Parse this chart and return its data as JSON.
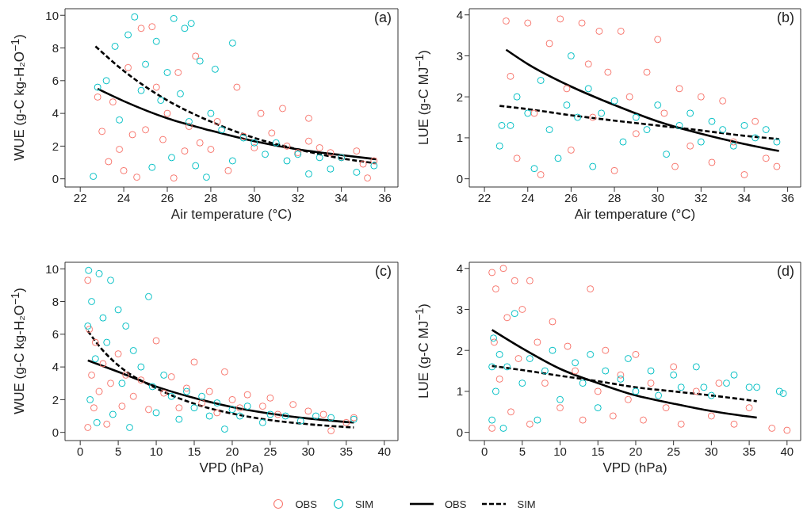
{
  "chart_data": [
    {
      "type": "scatter",
      "ylabel": "WUE (g-C kg-H₂O$^{−1}$)",
      "xlabel": "Air temperature (°C)",
      "annotations": [
        "(a)"
      ],
      "xlim": [
        21.3,
        36.6
      ],
      "ylim": [
        -0.5,
        10.4
      ],
      "xticks": [
        22,
        24,
        26,
        28,
        30,
        32,
        34,
        36
      ],
      "yticks": [
        0,
        2,
        4,
        6,
        8,
        10
      ],
      "legend": "bottom",
      "series": [
        {
          "name": "OBS",
          "marker": "circle",
          "color": "#f8766d",
          "x": [
            22.8,
            23,
            23.3,
            23.5,
            23.8,
            24,
            24.2,
            24.4,
            24.6,
            24.8,
            25,
            25.3,
            25.5,
            25.8,
            26,
            26.3,
            26.5,
            26.8,
            27,
            27.3,
            27.5,
            28,
            28.3,
            28.8,
            29.2,
            29.5,
            30,
            30.3,
            30.8,
            31.3,
            31.5,
            32,
            32.5,
            32.5,
            33,
            33.5,
            34,
            34.7,
            35,
            35.2,
            35.5
          ],
          "values": [
            5,
            2.9,
            1.05,
            4.7,
            1.8,
            0.5,
            6.8,
            2.7,
            0.1,
            9.2,
            3,
            9.3,
            5.6,
            2.4,
            4,
            0.05,
            6.5,
            1.7,
            3.2,
            7.5,
            2.2,
            1.8,
            3.5,
            0.5,
            5.6,
            2.6,
            1.9,
            4,
            2.8,
            4.3,
            2,
            1.6,
            3.7,
            2.3,
            1.9,
            1.6,
            1.3,
            1.7,
            0.9,
            0.05,
            1.1
          ]
        },
        {
          "name": "SIM",
          "marker": "circle",
          "color": "#00bfc4",
          "x": [
            22.6,
            22.8,
            23.2,
            23.6,
            23.8,
            24.2,
            24.5,
            24.8,
            25,
            25.3,
            25.5,
            25.7,
            26,
            26.2,
            26.3,
            26.6,
            26.8,
            27,
            27.1,
            27.3,
            27.5,
            27.8,
            28,
            28.2,
            28.5,
            29,
            29,
            29.5,
            30,
            30.5,
            31,
            31.5,
            32,
            32.5,
            33,
            33.5,
            34,
            34.7,
            35.5
          ],
          "values": [
            0.15,
            5.6,
            6,
            8.1,
            3.6,
            8.8,
            9.9,
            5.4,
            7,
            0.7,
            8.4,
            4.8,
            6.5,
            1.3,
            9.8,
            5.2,
            9.2,
            3.5,
            9.5,
            0.8,
            7.2,
            0.1,
            4,
            6.7,
            3,
            8.3,
            1.1,
            2.5,
            2.2,
            1.5,
            2.2,
            1.1,
            1.5,
            0.3,
            1.3,
            0.6,
            1.3,
            0.4,
            0.8
          ]
        },
        {
          "name": "OBS",
          "type": "line",
          "line_style": "solid",
          "color": "#000000",
          "x": [
            22.8,
            24,
            26,
            28,
            30,
            32,
            34,
            35.6
          ],
          "values": [
            5.5,
            4.75,
            3.7,
            2.95,
            2.3,
            1.8,
            1.45,
            1.2
          ]
        },
        {
          "name": "SIM",
          "type": "line",
          "line_style": "dashed",
          "color": "#000000",
          "x": [
            22.7,
            24,
            26,
            28,
            30,
            32,
            34,
            35.6
          ],
          "values": [
            8.1,
            6.6,
            4.8,
            3.5,
            2.5,
            1.8,
            1.25,
            0.95
          ]
        }
      ]
    },
    {
      "type": "scatter",
      "ylabel": "LUE (g-C MJ$^{−1}$)",
      "xlabel": "Air temperature (°C)",
      "annotations": [
        "(b)"
      ],
      "xlim": [
        21.3,
        36.6
      ],
      "ylim": [
        -0.2,
        4.15
      ],
      "xticks": [
        22,
        24,
        26,
        28,
        30,
        32,
        34,
        36
      ],
      "yticks": [
        0,
        1,
        2,
        3,
        4
      ],
      "series": [
        {
          "marker": "circle",
          "color": "#f8766d",
          "x": [
            23,
            23.2,
            23.5,
            24,
            24.3,
            24.6,
            25,
            25.5,
            25.8,
            26,
            26.5,
            26.8,
            27,
            27.3,
            27.7,
            28,
            28.3,
            28.7,
            29,
            29.5,
            30,
            30.3,
            30.8,
            31,
            31.5,
            32,
            32.5,
            33,
            33.5,
            34,
            34.5,
            35,
            35.5
          ],
          "values": [
            3.85,
            2.5,
            0.5,
            3.8,
            1.6,
            0.1,
            3.3,
            3.9,
            2.2,
            0.7,
            3.8,
            2.8,
            1.5,
            3.6,
            2.6,
            0.2,
            3.6,
            2,
            1.1,
            2.6,
            3.4,
            1.6,
            0.3,
            2.2,
            0.8,
            2,
            0.4,
            1.9,
            0.9,
            0.1,
            1.4,
            0.5,
            0.3
          ]
        },
        {
          "marker": "circle",
          "color": "#00bfc4",
          "x": [
            22.7,
            22.8,
            23.2,
            23.5,
            24,
            24.3,
            24.6,
            25,
            25.4,
            25.8,
            26,
            26.3,
            26.8,
            27,
            27.4,
            28,
            28.4,
            29,
            29.5,
            30,
            30.4,
            31,
            31.5,
            32,
            32.5,
            33,
            33.5,
            34,
            34.5,
            35,
            35.5
          ],
          "values": [
            0.8,
            1.3,
            1.3,
            2,
            1.6,
            0.25,
            2.4,
            1.2,
            0.5,
            1.8,
            3,
            1.5,
            2.2,
            0.3,
            1.6,
            1.9,
            0.9,
            1.5,
            1.2,
            1.8,
            0.6,
            1.3,
            1.6,
            0.9,
            1.4,
            1.2,
            0.8,
            1.3,
            1,
            1.2,
            0.9
          ]
        },
        {
          "type": "line",
          "line_style": "solid",
          "color": "#000000",
          "x": [
            23,
            24,
            26,
            28,
            30,
            32,
            34,
            35.6
          ],
          "values": [
            3.15,
            2.8,
            2.25,
            1.8,
            1.4,
            1.1,
            0.85,
            0.68
          ]
        },
        {
          "type": "line",
          "line_style": "dashed",
          "color": "#000000",
          "x": [
            22.7,
            24,
            26,
            28,
            30,
            32,
            34,
            35.6
          ],
          "values": [
            1.78,
            1.7,
            1.55,
            1.42,
            1.3,
            1.18,
            1.05,
            0.97
          ]
        }
      ]
    },
    {
      "type": "scatter",
      "ylabel": "WUE (g-C kg-H₂O$^{−1}$)",
      "xlabel": "VPD (hPa)",
      "annotations": [
        "(c)"
      ],
      "xlim": [
        -2,
        41.8
      ],
      "ylim": [
        -0.5,
        10.4
      ],
      "xticks": [
        0,
        5,
        10,
        15,
        20,
        25,
        30,
        35,
        40
      ],
      "yticks": [
        0,
        2,
        4,
        6,
        8,
        10
      ],
      "series": [
        {
          "marker": "circle",
          "color": "#f8766d",
          "x": [
            1,
            1,
            1.2,
            1.5,
            1.8,
            2,
            2.5,
            3,
            3.5,
            4,
            5,
            5.5,
            6,
            7,
            8,
            9,
            10,
            11,
            12,
            13,
            14,
            15,
            16,
            17,
            18,
            19,
            20,
            21,
            22,
            24,
            25,
            26,
            28,
            30,
            32,
            33,
            35,
            36
          ],
          "values": [
            9.3,
            0.3,
            6.3,
            3.5,
            1.5,
            5.5,
            2.5,
            4.2,
            0.5,
            3,
            4.8,
            1.6,
            3.5,
            2.2,
            3.2,
            1.4,
            5.6,
            2.4,
            3.4,
            1.5,
            2.7,
            4.3,
            1.8,
            2.5,
            1.2,
            3.7,
            2,
            1.5,
            2.3,
            1.6,
            2.1,
            1.1,
            1.7,
            1.3,
            1.1,
            0.1,
            0.6,
            0.9
          ]
        },
        {
          "marker": "circle",
          "color": "#00bfc4",
          "x": [
            1,
            1.1,
            1.3,
            1.5,
            2,
            2.2,
            2.5,
            3,
            3.5,
            4,
            4.3,
            5,
            5.5,
            6,
            6.5,
            7,
            8,
            9,
            9.5,
            10,
            11,
            12,
            13,
            14,
            15,
            16,
            17,
            18,
            19,
            20,
            21,
            22,
            24,
            25,
            27,
            29,
            31,
            33,
            36
          ],
          "values": [
            6.5,
            9.9,
            2,
            8,
            4.5,
            0.6,
            9.7,
            7,
            5.5,
            9.3,
            1.1,
            7.5,
            3,
            6.5,
            0.3,
            5,
            4,
            8.3,
            2.8,
            1.2,
            3.5,
            2.2,
            0.8,
            2.5,
            1.5,
            2.2,
            1,
            1.8,
            0.2,
            1.4,
            1,
            1.6,
            0.6,
            1.1,
            1,
            0.7,
            1,
            0.9,
            0.8
          ]
        },
        {
          "type": "line",
          "line_style": "solid",
          "color": "#000000",
          "x": [
            1,
            5,
            10,
            15,
            20,
            25,
            30,
            36
          ],
          "values": [
            4.4,
            3.7,
            2.8,
            2.1,
            1.55,
            1.15,
            0.85,
            0.6
          ]
        },
        {
          "type": "line",
          "line_style": "dashed",
          "color": "#000000",
          "x": [
            1,
            3,
            5,
            10,
            15,
            20,
            25,
            30,
            36
          ],
          "values": [
            6.2,
            5,
            4.1,
            2.7,
            1.75,
            1.15,
            0.75,
            0.5,
            0.3
          ]
        }
      ]
    },
    {
      "type": "scatter",
      "ylabel": "LUE (g-C MJ$^{−1}$)",
      "xlabel": "VPD (hPa)",
      "annotations": [
        "(d)"
      ],
      "xlim": [
        -2,
        41.8
      ],
      "ylim": [
        -0.2,
        4.15
      ],
      "xticks": [
        0,
        5,
        10,
        15,
        20,
        25,
        30,
        35,
        40
      ],
      "yticks": [
        0,
        1,
        2,
        3,
        4
      ],
      "series": [
        {
          "marker": "circle",
          "color": "#f8766d",
          "x": [
            1,
            1,
            1.3,
            1.5,
            2,
            2.5,
            3,
            3.5,
            4,
            4.5,
            5,
            6,
            6,
            7,
            8,
            9,
            10,
            11,
            12,
            13,
            14,
            15,
            16,
            17,
            18,
            19,
            20,
            21,
            22,
            24,
            25,
            26,
            28,
            30,
            31,
            33,
            35,
            38,
            40
          ],
          "values": [
            0.1,
            3.9,
            2.2,
            3.5,
            1.3,
            4,
            2.8,
            0.5,
            3.7,
            1.8,
            3,
            0.2,
            3.7,
            2.2,
            1.2,
            2.7,
            0.6,
            2.1,
            1.5,
            0.3,
            3.5,
            1,
            2,
            0.4,
            1.4,
            0.8,
            1.9,
            0.3,
            1.2,
            0.6,
            1.6,
            0.2,
            1,
            0.4,
            1.2,
            0.2,
            0.6,
            0.1,
            0.05
          ]
        },
        {
          "marker": "circle",
          "color": "#00bfc4",
          "x": [
            1,
            1,
            1.2,
            1.5,
            2,
            2.5,
            3,
            4,
            5,
            6,
            7,
            8,
            9,
            10,
            12,
            13,
            14,
            15,
            16,
            18,
            19,
            20,
            22,
            23,
            25,
            26,
            28,
            29,
            30,
            32,
            33,
            35,
            36,
            39,
            39.5
          ],
          "values": [
            1.6,
            0.3,
            2.3,
            1,
            1.9,
            0.1,
            1.6,
            2.9,
            1.2,
            1.8,
            0.3,
            1.5,
            2,
            0.8,
            1.7,
            1.2,
            1.9,
            0.6,
            1.5,
            1.3,
            1.8,
            1,
            1.5,
            0.9,
            1.4,
            1.1,
            1.6,
            1.1,
            0.9,
            1.2,
            1.4,
            1.1,
            1.1,
            1,
            0.95
          ]
        },
        {
          "type": "line",
          "line_style": "solid",
          "color": "#000000",
          "x": [
            1,
            5,
            10,
            15,
            20,
            25,
            30,
            36
          ],
          "values": [
            2.5,
            2.05,
            1.55,
            1.2,
            0.9,
            0.7,
            0.52,
            0.36
          ]
        },
        {
          "type": "line",
          "line_style": "dashed",
          "color": "#000000",
          "x": [
            1,
            5,
            10,
            15,
            20,
            25,
            30,
            36
          ],
          "values": [
            1.62,
            1.52,
            1.38,
            1.25,
            1.1,
            1,
            0.9,
            0.76
          ]
        }
      ]
    }
  ]
}
